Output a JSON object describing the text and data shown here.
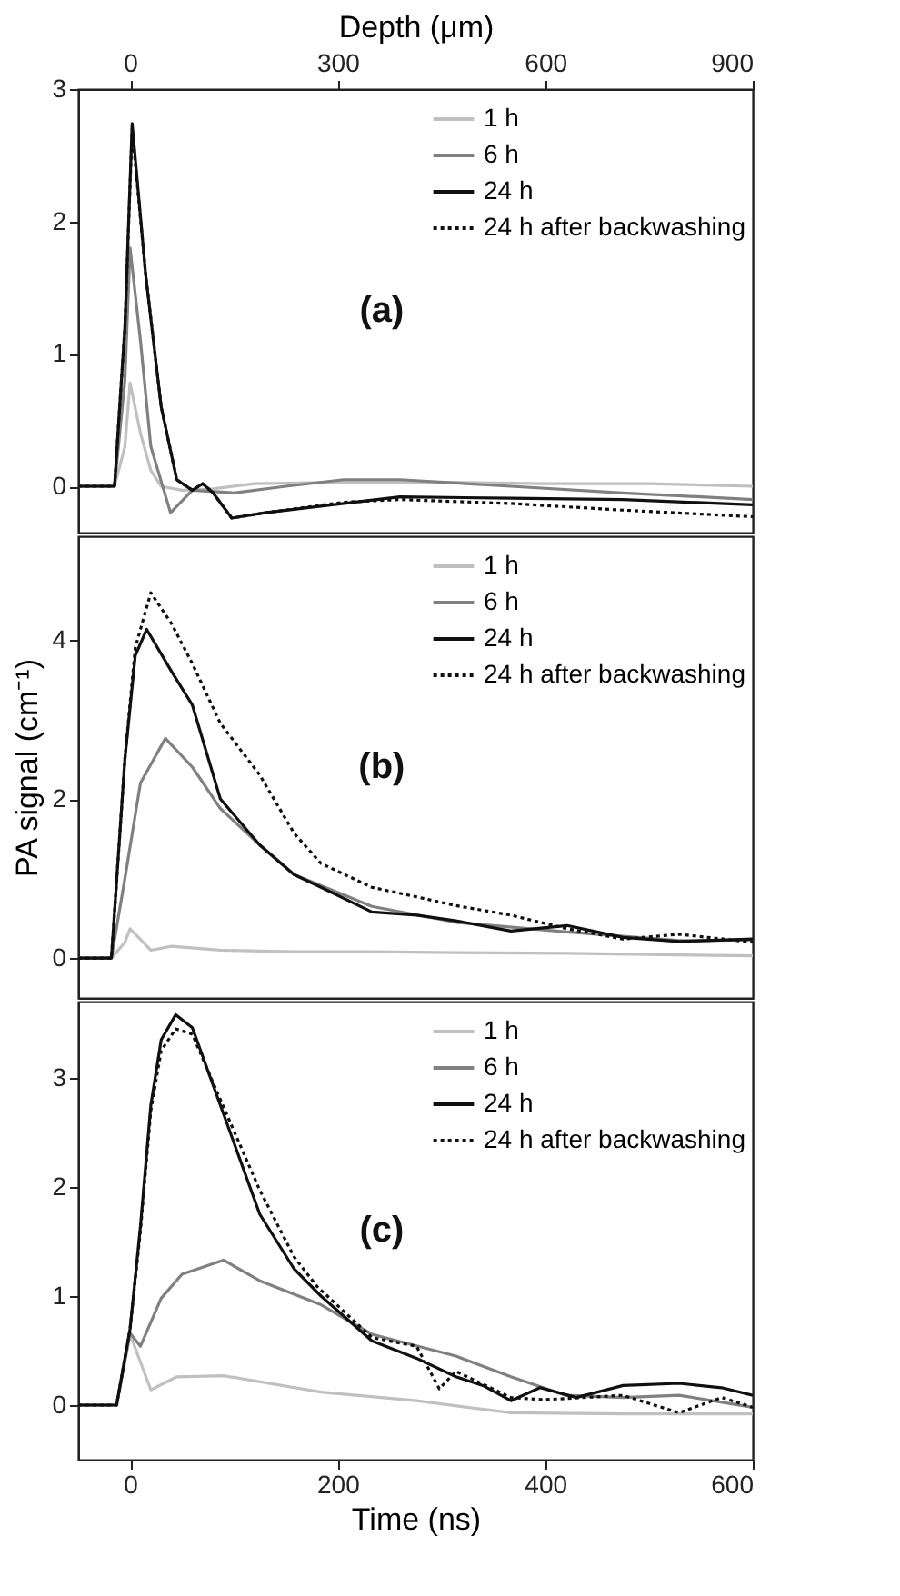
{
  "chart_data": [
    {
      "type": "line",
      "x2label": "Depth (μm)",
      "x2lim": [
        -75,
        900
      ],
      "x2ticks": [
        0,
        300,
        600,
        900
      ],
      "xlim": [
        -50,
        600
      ],
      "ylim": [
        -0.35,
        3
      ],
      "yticks": [
        0,
        1,
        2,
        3
      ],
      "tick_labels": "y",
      "grid": false,
      "legend": "top right",
      "annotations": [
        "(a)"
      ],
      "series": [
        {
          "name": "1 h",
          "color": "#c0c0c0",
          "x": [
            -50,
            -15,
            -5,
            0,
            10,
            20,
            30,
            50,
            80,
            120,
            200,
            300,
            400,
            500,
            600
          ],
          "values": [
            0,
            0,
            0.3,
            0.78,
            0.4,
            0.12,
            0,
            -0.03,
            -0.02,
            0.02,
            0.03,
            0.03,
            0.02,
            0.02,
            0
          ]
        },
        {
          "name": "6 h",
          "color": "#808080",
          "x": [
            -50,
            -15,
            -5,
            0,
            10,
            20,
            39,
            60,
            100,
            150,
            206,
            260,
            367,
            475,
            600
          ],
          "values": [
            0,
            0,
            0.8,
            1.8,
            1.1,
            0.3,
            -0.2,
            -0.03,
            -0.05,
            0,
            0.05,
            0.05,
            0,
            -0.05,
            -0.1
          ]
        },
        {
          "name": "24 h",
          "color": "#101010",
          "x": [
            -50,
            -15,
            -5,
            2,
            15,
            30,
            45,
            60,
            70,
            80,
            98,
            130,
            206,
            260,
            367,
            475,
            600
          ],
          "values": [
            0,
            0,
            1.2,
            2.74,
            1.6,
            0.6,
            0.05,
            -0.03,
            0.02,
            -0.05,
            -0.24,
            -0.2,
            -0.13,
            -0.08,
            -0.09,
            -0.1,
            -0.14
          ]
        },
        {
          "name": "24 h after backwashing",
          "color": "#101010",
          "line_style": "dotted",
          "x": [
            -50,
            -15,
            -5,
            2,
            15,
            30,
            45,
            60,
            70,
            80,
            98,
            130,
            206,
            260,
            367,
            475,
            600
          ],
          "values": [
            0,
            0,
            1.2,
            2.7,
            1.6,
            0.6,
            0.05,
            -0.03,
            0.02,
            -0.05,
            -0.24,
            -0.2,
            -0.12,
            -0.1,
            -0.13,
            -0.18,
            -0.23
          ]
        }
      ]
    },
    {
      "type": "line",
      "ylabel": "PA signal (cm⁻¹)",
      "xlim": [
        -50,
        600
      ],
      "ylim": [
        -0.5,
        5.3
      ],
      "yticks": [
        0,
        2,
        4
      ],
      "tick_labels": "y",
      "grid": false,
      "legend": "top right",
      "annotations": [
        "(b)"
      ],
      "series": [
        {
          "name": "1 h",
          "color": "#c0c0c0",
          "x": [
            -50,
            -18,
            -5,
            0,
            20,
            40,
            87,
            158,
            233,
            314,
            421,
            529,
            600
          ],
          "values": [
            0,
            0,
            0.2,
            0.37,
            0.1,
            0.15,
            0.1,
            0.08,
            0.08,
            0.07,
            0.06,
            0.04,
            0.03
          ]
        },
        {
          "name": "6 h",
          "color": "#808080",
          "x": [
            -50,
            -18,
            -5,
            10,
            34,
            60,
            87,
            125,
            158,
            233,
            314,
            421,
            529,
            600
          ],
          "values": [
            0,
            0,
            1.0,
            2.2,
            2.76,
            2.4,
            1.88,
            1.42,
            1.05,
            0.65,
            0.45,
            0.33,
            0.22,
            0.23
          ]
        },
        {
          "name": "24 h",
          "color": "#101010",
          "x": [
            -50,
            -18,
            -5,
            5,
            16,
            40,
            60,
            87,
            125,
            158,
            184,
            233,
            276,
            314,
            367,
            421,
            475,
            529,
            600
          ],
          "values": [
            0,
            0,
            2.5,
            3.8,
            4.13,
            3.6,
            3.18,
            2.0,
            1.42,
            1.05,
            0.89,
            0.58,
            0.54,
            0.47,
            0.34,
            0.41,
            0.26,
            0.21,
            0.24
          ]
        },
        {
          "name": "24 h after backwashing",
          "color": "#101010",
          "line_style": "dotted",
          "x": [
            -50,
            -18,
            -5,
            5,
            20,
            40,
            60,
            87,
            125,
            158,
            184,
            233,
            276,
            314,
            367,
            421,
            475,
            529,
            600
          ],
          "values": [
            0,
            0,
            2.5,
            3.9,
            4.59,
            4.2,
            3.7,
            2.95,
            2.3,
            1.57,
            1.19,
            0.89,
            0.77,
            0.66,
            0.54,
            0.37,
            0.24,
            0.3,
            0.2
          ]
        }
      ]
    },
    {
      "type": "line",
      "xlabel": "Time (ns)",
      "xlim": [
        -50,
        600
      ],
      "xticks": [
        0,
        200,
        400,
        600
      ],
      "ylim": [
        -0.5,
        3.7
      ],
      "yticks": [
        0,
        1,
        2,
        3
      ],
      "grid": false,
      "legend": "top right",
      "annotations": [
        "(c)"
      ],
      "series": [
        {
          "name": "1 h",
          "color": "#c0c0c0",
          "x": [
            -50,
            -13,
            0,
            20,
            45,
            90,
            184,
            276,
            367,
            475,
            600
          ],
          "values": [
            0,
            0,
            0.65,
            0.14,
            0.26,
            0.27,
            0.12,
            0.04,
            -0.07,
            -0.08,
            -0.08
          ]
        },
        {
          "name": "6 h",
          "color": "#808080",
          "x": [
            -50,
            -13,
            0,
            10,
            30,
            50,
            90,
            125,
            184,
            233,
            314,
            367,
            420,
            475,
            529,
            600
          ],
          "values": [
            0,
            0,
            0.66,
            0.54,
            0.98,
            1.2,
            1.33,
            1.14,
            0.92,
            0.65,
            0.45,
            0.26,
            0.09,
            0.07,
            0.09,
            -0.02
          ]
        },
        {
          "name": "24 h",
          "color": "#101010",
          "x": [
            -50,
            -13,
            0,
            10,
            20,
            30,
            44,
            60,
            87,
            125,
            158,
            184,
            233,
            276,
            314,
            340,
            367,
            395,
            430,
            475,
            529,
            570,
            600
          ],
          "values": [
            0,
            0,
            0.7,
            1.64,
            2.75,
            3.35,
            3.58,
            3.46,
            2.75,
            1.75,
            1.25,
            1.0,
            0.59,
            0.43,
            0.26,
            0.18,
            0.04,
            0.16,
            0.07,
            0.18,
            0.2,
            0.16,
            0.09
          ]
        },
        {
          "name": "24 h after backwashing",
          "color": "#101010",
          "line_style": "dotted",
          "x": [
            -50,
            -13,
            0,
            10,
            20,
            30,
            44,
            60,
            87,
            125,
            158,
            180,
            233,
            276,
            298,
            314,
            367,
            400,
            475,
            529,
            570,
            600
          ],
          "values": [
            0,
            0,
            0.7,
            1.6,
            2.7,
            3.25,
            3.45,
            3.4,
            2.8,
            1.97,
            1.36,
            1.09,
            0.62,
            0.54,
            0.15,
            0.31,
            0.07,
            0.05,
            0.09,
            -0.07,
            0.07,
            -0.02
          ]
        }
      ]
    }
  ]
}
